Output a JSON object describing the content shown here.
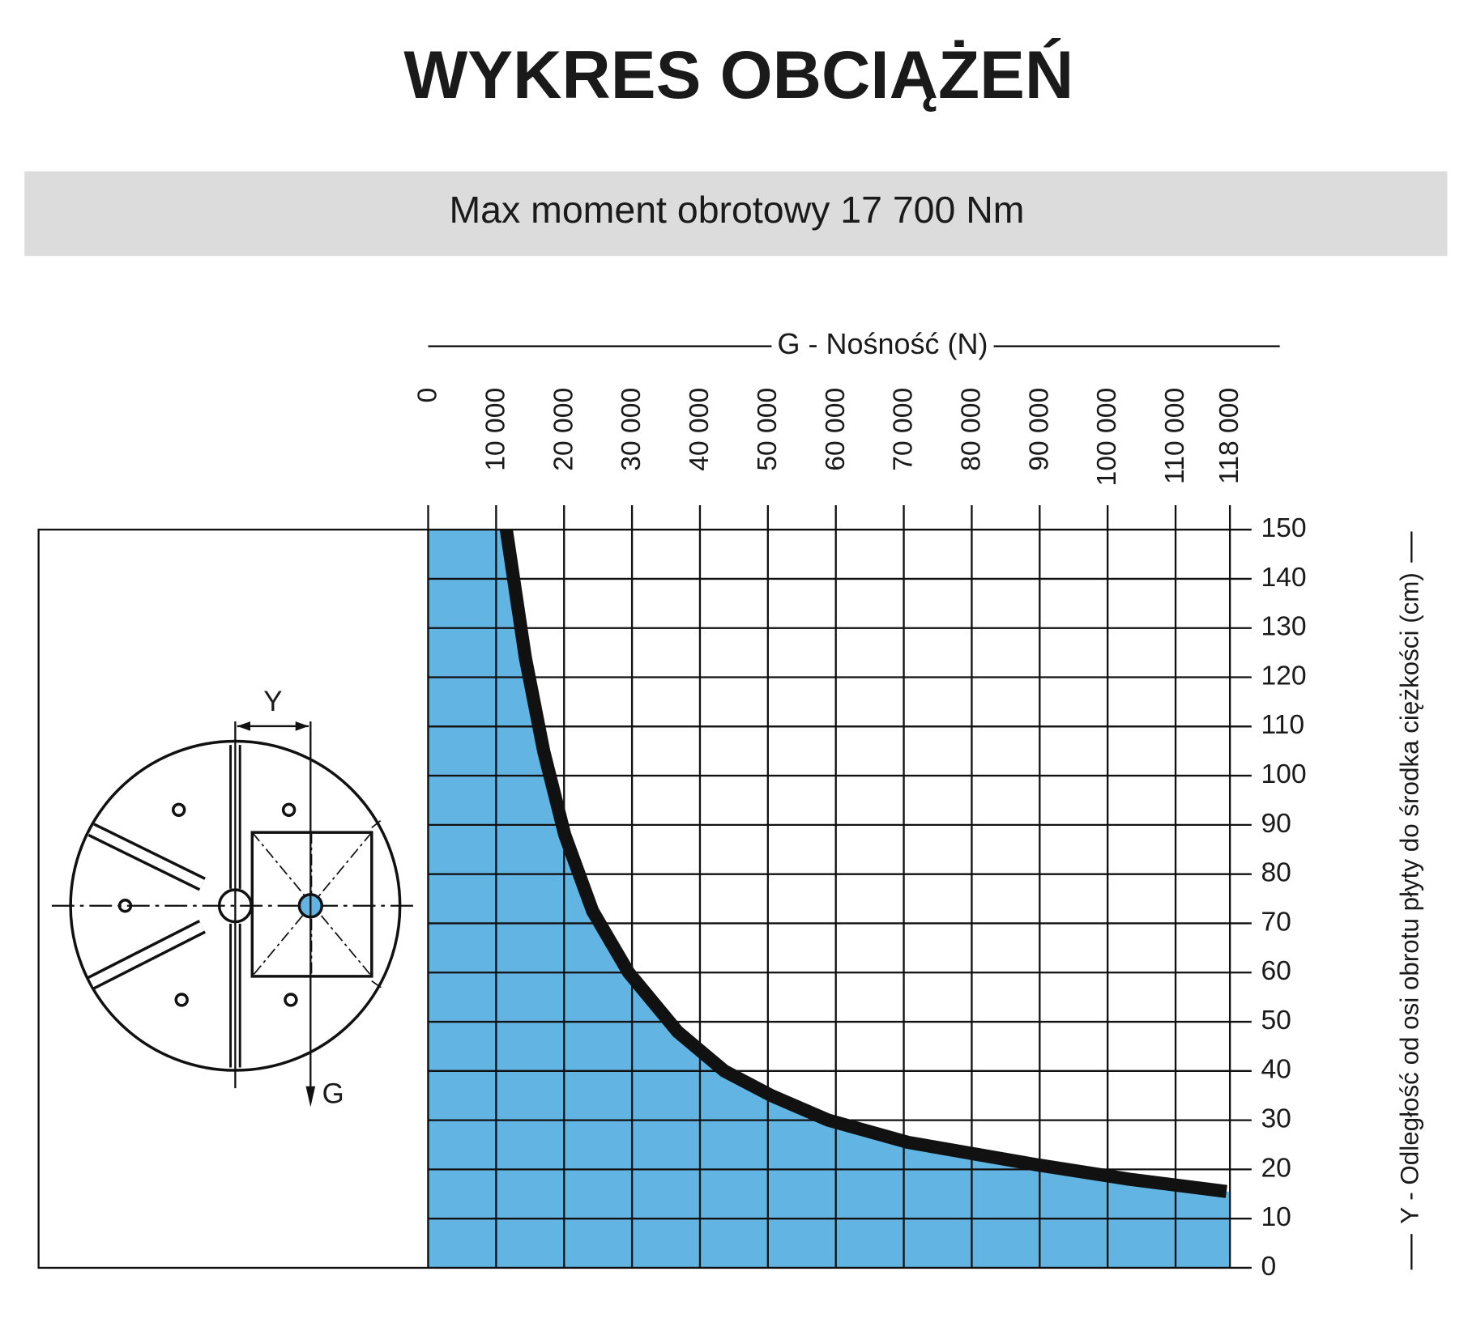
{
  "chart_data": {
    "type": "area",
    "title": "WYKRES OBCIĄŻEŃ",
    "subtitle": "Max moment obrotowy 17 700 Nm",
    "x_label": "G - Nośność (N)",
    "y_label": "Y - Odległość od osi obrotu płyty do środka ciężkości (cm)",
    "x": [
      11500,
      14300,
      17000,
      20100,
      24200,
      29500,
      36700,
      43600,
      50500,
      58900,
      70600,
      89300,
      103200,
      117500
    ],
    "values": [
      150,
      124,
      105,
      88,
      72.5,
      60,
      48,
      40,
      35,
      30,
      25.5,
      21,
      18,
      15.5
    ],
    "color": "#111111",
    "fill_color": "#62b5e3",
    "xlim": [
      0,
      118000
    ],
    "xticks": [
      0,
      {
        "value": 10000,
        "label": "10 000"
      },
      {
        "value": 20000,
        "label": "20 000"
      },
      {
        "value": 30000,
        "label": "30 000"
      },
      {
        "value": 40000,
        "label": "40 000"
      },
      {
        "value": 50000,
        "label": "50 000"
      },
      {
        "value": 60000,
        "label": "60 000"
      },
      {
        "value": 70000,
        "label": "70 000"
      },
      {
        "value": 80000,
        "label": "80 000"
      },
      {
        "value": 90000,
        "label": "90 000"
      },
      {
        "value": 100000,
        "label": "100 000"
      },
      {
        "value": 110000,
        "label": "110 000"
      },
      {
        "value": 118000,
        "label": "118 000"
      }
    ],
    "ylim": [
      0,
      150
    ],
    "yticks": [
      0,
      10,
      20,
      30,
      40,
      50,
      60,
      70,
      80,
      90,
      100,
      110,
      120,
      130,
      140,
      150
    ],
    "grid": true
  },
  "diagram": {
    "labels": [
      "Y",
      "G"
    ]
  }
}
